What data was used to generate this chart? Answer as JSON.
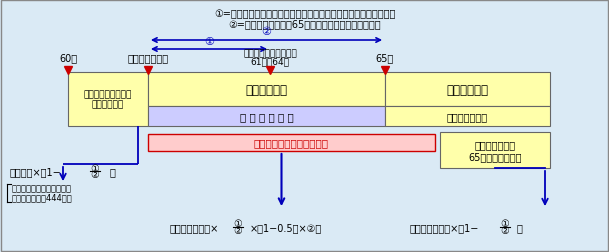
{
  "bg_color": "#daeaf5",
  "title_line1": "①=繰上げ請求月から特別支給開始年齢になる月の前月までの月数",
  "title_line2": "②=繰上げ請求月かつ65歳になる月の前月までの月数",
  "label_60": "60歳",
  "label_ichibu": "一部繰上げ請求",
  "label_tokubetsu_top": "（特別支給開始年齢）",
  "label_tokubetsu_bot": "61歳～64歳",
  "label_65": "65歳",
  "box1_text": "報酷比例部分相当の\n老齢厚生年金",
  "box2_text": "報酷比例部分",
  "box3_text": "老齢厚生年金",
  "box4_text": "繰 上 げ 調 整 額",
  "box5_text": "（経過的加算）",
  "box6_text": "一部繰上げの老齢基礎年金",
  "box7_text": "老齢基礎年金の\n65歳以後の加算額",
  "left_formula": "定額部分×（1−",
  "left_formula_end": "）",
  "left_note1": "（定額部分の厚生年金被保",
  "left_note2": "険者月数は最高444月）",
  "bot_left1": "老齢基礎年金額×",
  "bot_left2": "×（1−0.5％×②）",
  "bot_right1": "老齢基礎年金額×（1−",
  "bot_right2": "）",
  "frac_num": "①",
  "frac_den": "②",
  "arrow_color": "#0000bb",
  "red_color": "#cc0000",
  "box1_fc": "#ffffaa",
  "box2_fc": "#ffffaa",
  "box3_fc": "#ffffaa",
  "box4_fc": "#ccccff",
  "box5_fc": "#ffffaa",
  "box6_fc": "#ffcccc",
  "box7_fc": "#ffffaa",
  "box_ec": "#666666",
  "outer_bg": "#daeaf5"
}
